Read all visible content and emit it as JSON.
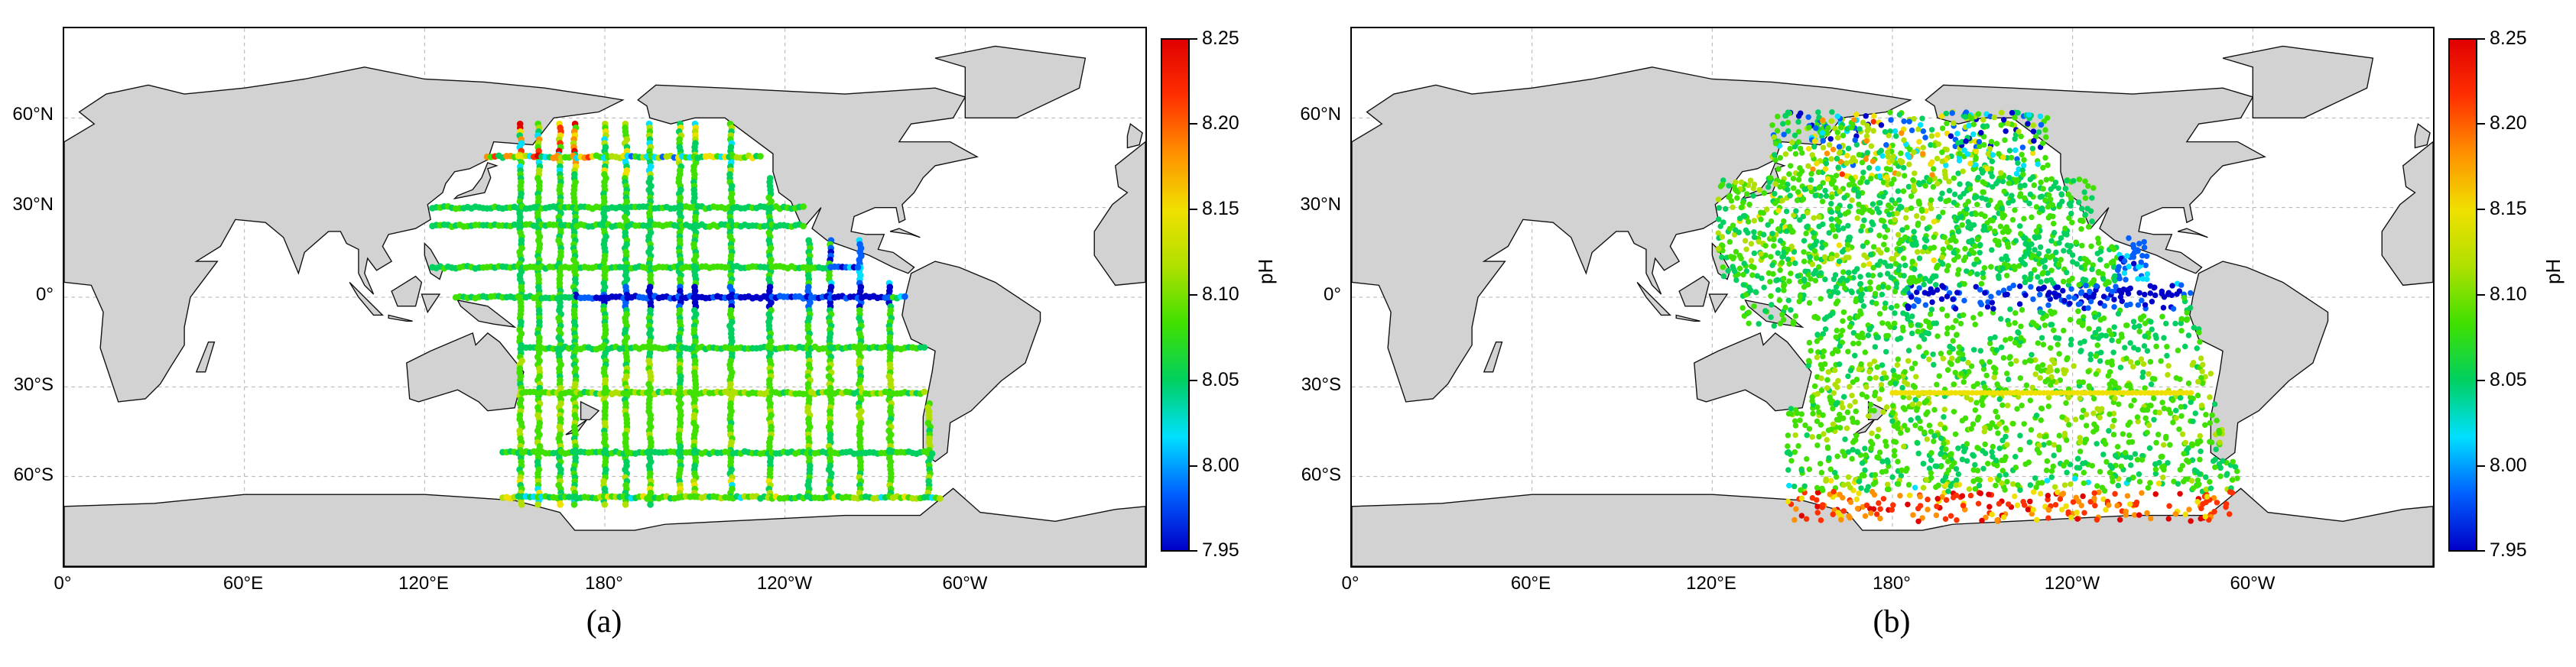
{
  "colors": {
    "land": "#d2d2d2",
    "coast": "#111111",
    "grid": "#b0b0b0",
    "ocean": "#ffffff"
  },
  "axes": {
    "lat_ticks": [
      "60°N",
      "30°N",
      "0°",
      "30°S",
      "60°S"
    ],
    "lon_ticks": [
      "0°",
      "60°E",
      "120°E",
      "180°",
      "120°W",
      "60°W"
    ]
  },
  "colorbar": {
    "label": "pH",
    "ticks": [
      "8.25",
      "8.20",
      "8.15",
      "8.10",
      "8.05",
      "8.00",
      "7.95"
    ],
    "min": 7.95,
    "max": 8.25,
    "colormap": [
      "#0000c8",
      "#0060ff",
      "#00e0ff",
      "#00d060",
      "#40e000",
      "#b0e000",
      "#f0e000",
      "#ff9000",
      "#ff3000",
      "#e00000"
    ]
  },
  "panels": [
    {
      "caption": "(a)"
    },
    {
      "caption": "(b)"
    }
  ]
}
